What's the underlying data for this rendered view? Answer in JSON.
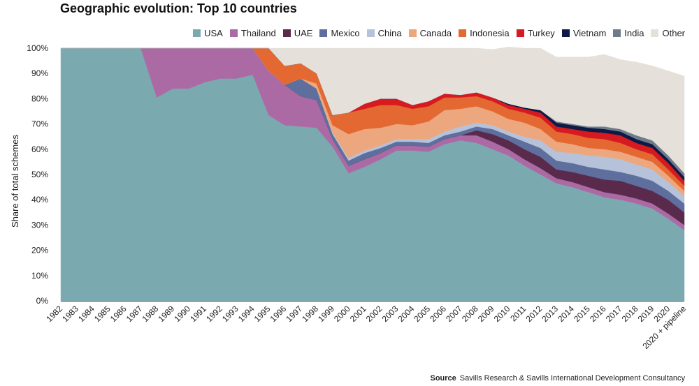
{
  "title": "Geographic evolution: Top 10 countries",
  "source": {
    "label": "Source",
    "text": "Savills Research & Savills International Development Consultancy"
  },
  "chart_data": {
    "type": "area",
    "stacked": true,
    "ylabel": "Share of total schemes",
    "ylim": [
      0,
      100
    ],
    "yticks": [
      "0%",
      "10%",
      "20%",
      "30%",
      "40%",
      "50%",
      "60%",
      "70%",
      "80%",
      "90%",
      "100%"
    ],
    "legend_position": "top-right",
    "categories": [
      "1982",
      "1983",
      "1984",
      "1985",
      "1986",
      "1987",
      "1988",
      "1989",
      "1990",
      "1991",
      "1992",
      "1993",
      "1994",
      "1995",
      "1996",
      "1997",
      "1998",
      "1999",
      "2000",
      "2001",
      "2002",
      "2003",
      "2004",
      "2005",
      "2006",
      "2007",
      "2008",
      "2009",
      "2010",
      "2011",
      "2012",
      "2013",
      "2014",
      "2015",
      "2016",
      "2017",
      "2018",
      "2019",
      "2020",
      "2020 + pipeline"
    ],
    "series": [
      {
        "name": "USA",
        "color": "#7ba9b0",
        "values": [
          100,
          100,
          100,
          100,
          100,
          100,
          80.5,
          84,
          84,
          86.5,
          88,
          88,
          89.5,
          73.5,
          69.5,
          69,
          68.5,
          61,
          50.5,
          53,
          56,
          59.5,
          59.5,
          59,
          62,
          63.5,
          62.5,
          60,
          57.5,
          53.5,
          50,
          46.5,
          45,
          43,
          41,
          40,
          38.5,
          36.5,
          32.5,
          28
        ]
      },
      {
        "name": "Thailand",
        "color": "#ac6aa4",
        "values": [
          0,
          0,
          0,
          0,
          0,
          0,
          19.5,
          16,
          16,
          13.5,
          12,
          12,
          10.5,
          17.5,
          16,
          12,
          11,
          3,
          3,
          3,
          2.5,
          2,
          2,
          2,
          2,
          2,
          3,
          3,
          2.5,
          2.5,
          2.5,
          2,
          2,
          2,
          2,
          2,
          2,
          2,
          2,
          2
        ]
      },
      {
        "name": "UAE",
        "color": "#5a2a4d",
        "values": [
          0,
          0,
          0,
          0,
          0,
          0,
          0,
          0,
          0,
          0,
          0,
          0,
          0,
          0,
          0,
          0,
          0,
          0,
          0,
          0,
          0,
          0,
          0,
          0,
          0,
          0,
          2,
          3,
          3.5,
          4,
          4.5,
          3.5,
          4,
          4.5,
          5,
          5.5,
          5,
          5,
          5.5,
          5
        ]
      },
      {
        "name": "Mexico",
        "color": "#5e6f9e",
        "values": [
          0,
          0,
          0,
          0,
          0,
          0,
          0,
          0,
          0,
          0,
          0,
          0,
          0,
          0,
          0,
          7,
          4.5,
          2,
          2,
          2.5,
          2,
          1.5,
          1.5,
          1.5,
          1.5,
          1.5,
          1.5,
          2,
          2,
          3,
          3.5,
          3.5,
          3.5,
          3.5,
          4,
          3.5,
          4,
          4,
          3.5,
          3.5
        ]
      },
      {
        "name": "China",
        "color": "#b6c2d9",
        "values": [
          0,
          0,
          0,
          0,
          0,
          0,
          0,
          0,
          0,
          0,
          0,
          0,
          0,
          0,
          0,
          0,
          0,
          0.5,
          1,
          1,
          1,
          1,
          1,
          1.5,
          1.5,
          2,
          1.5,
          1.5,
          1.5,
          2,
          3,
          3.5,
          4,
          4.5,
          5,
          5,
          4.5,
          4.5,
          3.5,
          3
        ]
      },
      {
        "name": "Canada",
        "color": "#eda77e",
        "values": [
          0,
          0,
          0,
          0,
          0,
          0,
          0,
          0,
          0,
          0,
          0,
          0,
          0,
          0,
          0,
          0,
          2,
          3,
          9.5,
          8.5,
          7,
          6,
          5.5,
          7,
          8.5,
          7,
          6.5,
          5.5,
          5,
          5.5,
          4.5,
          4,
          3.5,
          3,
          3,
          3,
          3,
          3,
          2.5,
          2
        ]
      },
      {
        "name": "Indonesia",
        "color": "#e46831",
        "values": [
          0,
          0,
          0,
          0,
          0,
          0,
          0,
          0,
          0,
          0,
          0,
          0,
          0,
          9,
          7.5,
          6,
          4,
          4,
          8.5,
          8,
          9,
          7.5,
          6.5,
          6,
          5,
          4.5,
          4,
          4,
          4,
          4,
          4.5,
          4,
          4,
          4,
          4,
          3.5,
          3,
          3,
          2.5,
          2
        ]
      },
      {
        "name": "Turkey",
        "color": "#d71920",
        "values": [
          0,
          0,
          0,
          0,
          0,
          0,
          0,
          0,
          0,
          0,
          0,
          0,
          0,
          0,
          0,
          0,
          0,
          0,
          0,
          2,
          2.5,
          2.5,
          1.5,
          2,
          1.5,
          1,
          1.5,
          1.5,
          1.5,
          1.5,
          2,
          2,
          2,
          2.5,
          2.5,
          3,
          2.5,
          2.5,
          2.5,
          2
        ]
      },
      {
        "name": "Vietnam",
        "color": "#0c1a45",
        "values": [
          0,
          0,
          0,
          0,
          0,
          0,
          0,
          0,
          0,
          0,
          0,
          0,
          0,
          0,
          0,
          0,
          0,
          0,
          0,
          0,
          0,
          0,
          0,
          0,
          0,
          0,
          0,
          0,
          0.5,
          0.5,
          1,
          1.5,
          1.5,
          1.5,
          1.5,
          1.5,
          1.5,
          1.5,
          1.5,
          1.5
        ]
      },
      {
        "name": "India",
        "color": "#6f7b8a",
        "values": [
          0,
          0,
          0,
          0,
          0,
          0,
          0,
          0,
          0,
          0,
          0,
          0,
          0,
          0,
          0,
          0,
          0,
          0,
          0,
          0,
          0,
          0,
          0,
          0,
          0,
          0,
          0,
          0,
          0,
          0,
          0,
          0.5,
          0.5,
          0.5,
          1,
          1,
          1.5,
          1.5,
          1.5,
          1.5
        ]
      },
      {
        "name": "Other",
        "color": "#e5e0da",
        "values": [
          0,
          0,
          0,
          0,
          0,
          0,
          0,
          0,
          0,
          0,
          0,
          0,
          0,
          0,
          7,
          6,
          10,
          26.5,
          25.5,
          22,
          20,
          20,
          22.5,
          21,
          18,
          18.5,
          17.5,
          19,
          22.5,
          23.5,
          24.5,
          25.5,
          26.5,
          27.5,
          28.5,
          27.5,
          29,
          29.5,
          33.5,
          38.5
        ]
      }
    ]
  }
}
